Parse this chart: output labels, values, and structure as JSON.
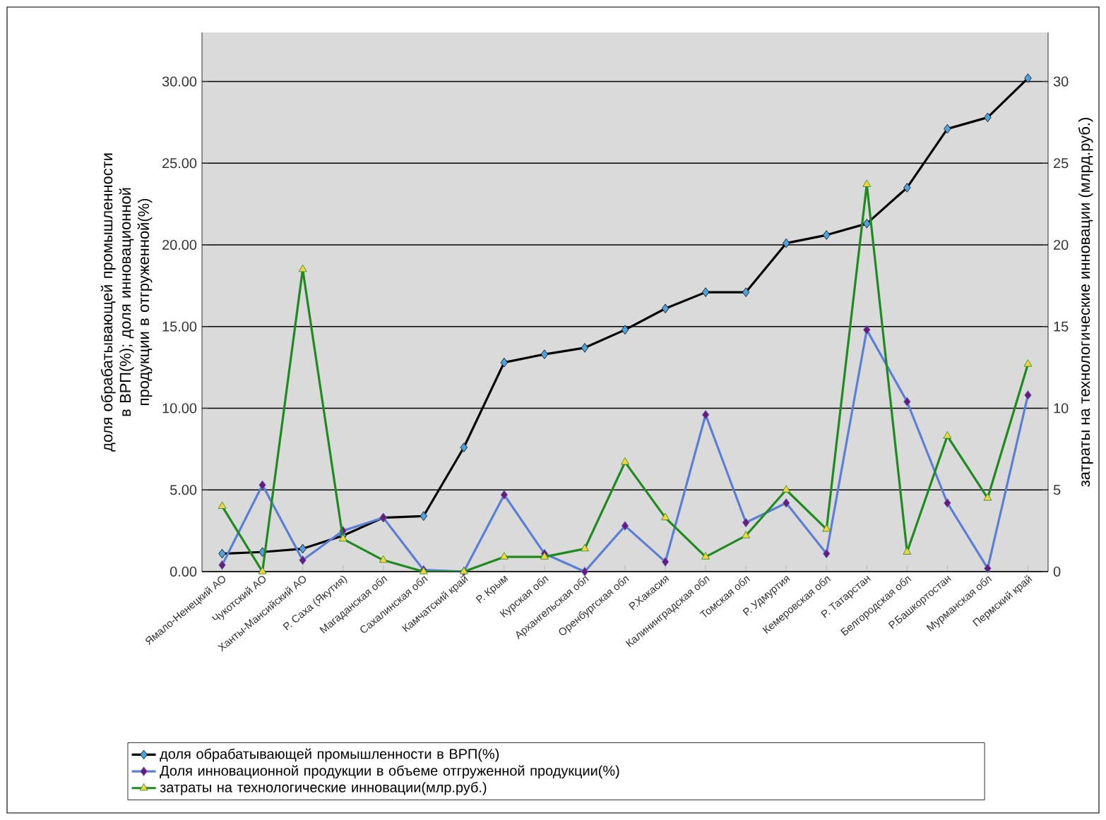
{
  "chart_data": {
    "type": "line",
    "ylabel": "доля обрабатывающей промышленности в ВРП(%); доля инновационной продукции в отгруженной(%)",
    "y2label": "затраты на технологические инновации (млрд.руб.)",
    "categories": [
      "Ямало-Ненецкий АО",
      "Чукотский АО",
      "Ханты-Мансийский АО",
      "Р. Саха (Якутия)",
      "Магаданская обл",
      "Сахалинская обл",
      "Камчатский край",
      "Р. Крым",
      "Курская обл",
      "Архангельская обл",
      "Оренбургская обл",
      "Р.Хакасия",
      "Калининградская обл",
      "Томская обл",
      "Р. Удмуртия",
      "Кемеровская обл",
      "Р. Татарстан",
      "Белгородская обл",
      "Р.Башкортостан",
      "Мурманская обл",
      "Пермский край"
    ],
    "series": [
      {
        "name": "доля обрабатывающей промышленности в ВРП(%)",
        "color": "#000000",
        "marker": "diamond",
        "values": [
          1.1,
          1.2,
          1.4,
          2.2,
          3.3,
          3.4,
          7.6,
          12.8,
          13.3,
          13.7,
          14.8,
          16.1,
          17.1,
          17.1,
          20.1,
          20.6,
          21.3,
          23.5,
          27.1,
          27.8,
          30.2
        ]
      },
      {
        "name": "Доля инновационной продукции в объеме отгруженной продукции(%)",
        "color": "#5b7fd6",
        "marker": "diamond",
        "values": [
          0.4,
          5.3,
          0.7,
          2.5,
          3.3,
          0.1,
          0.0,
          4.7,
          1.1,
          0.0,
          2.8,
          0.6,
          9.6,
          3.0,
          4.2,
          1.1,
          14.8,
          10.4,
          4.2,
          0.2,
          10.8
        ]
      },
      {
        "name": "затраты на технологические инновации(млр.руб.)",
        "color": "#1f8a1f",
        "marker": "triangle",
        "axis": "y2",
        "values": [
          4.0,
          0.0,
          18.5,
          2.0,
          0.7,
          0.0,
          0.0,
          0.9,
          0.9,
          1.4,
          6.7,
          3.3,
          0.9,
          2.2,
          5.0,
          2.6,
          23.7,
          1.2,
          8.3,
          4.5,
          12.7
        ]
      }
    ],
    "ylim": [
      0,
      33
    ],
    "yticks": [
      {
        "value": 0,
        "label": "0.00"
      },
      {
        "value": 5,
        "label": "5.00"
      },
      {
        "value": 10,
        "label": "10.00"
      },
      {
        "value": 15,
        "label": "15.00"
      },
      {
        "value": 20,
        "label": "20.00"
      },
      {
        "value": 25,
        "label": "25.00"
      },
      {
        "value": 30,
        "label": "30.00"
      }
    ],
    "y2lim": [
      0,
      33
    ],
    "y2ticks": [
      0,
      5,
      10,
      15,
      20,
      25,
      30
    ],
    "grid": "y",
    "legend": "bottom"
  }
}
